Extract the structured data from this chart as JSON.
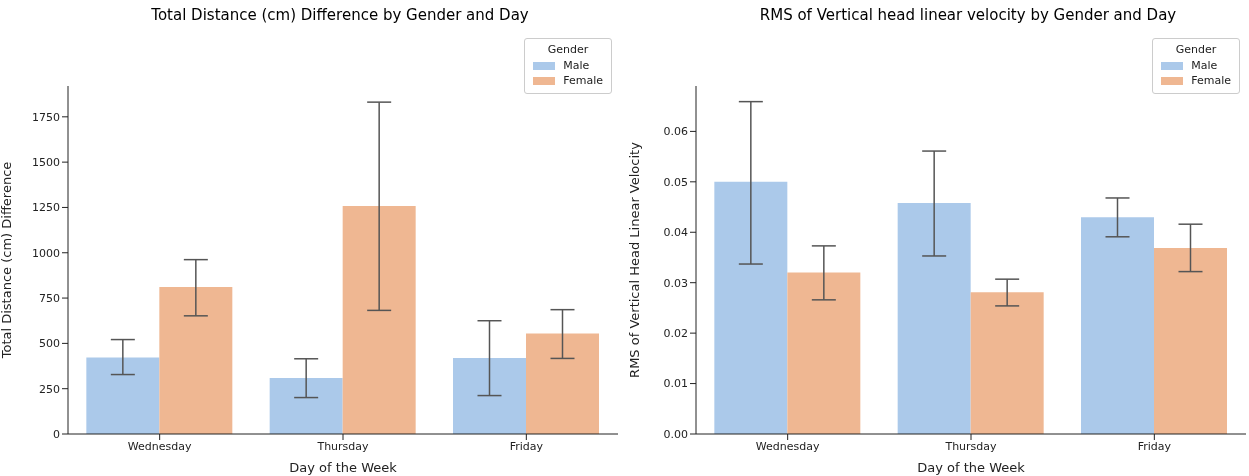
{
  "chart_data": [
    {
      "type": "bar",
      "title": "Total Distance (cm) Difference by Gender and Day",
      "xlabel": "Day of the Week",
      "ylabel": "Total Distance (cm) Difference",
      "legend_title": "Gender",
      "legend": "top right",
      "categories": [
        "Wednesday",
        "Thursday",
        "Friday"
      ],
      "series": [
        {
          "name": "Male",
          "color": "#abc9ea",
          "values": [
            422,
            309,
            419
          ],
          "errors": [
            [
              328,
              521
            ],
            [
              201,
              415
            ],
            [
              212,
              625
            ]
          ]
        },
        {
          "name": "Female",
          "color": "#efb792",
          "values": [
            811,
            1258,
            555
          ],
          "errors": [
            [
              652,
              962
            ],
            [
              682,
              1831
            ],
            [
              417,
              686
            ]
          ]
        }
      ],
      "ylim": [
        0,
        1920
      ],
      "yticks": [
        0,
        250,
        500,
        750,
        1000,
        1250,
        1500,
        1750
      ]
    },
    {
      "type": "bar",
      "title": "RMS of Vertical head linear velocity by Gender and Day",
      "xlabel": "Day of the Week",
      "ylabel": "RMS of Vertical Head Linear Velocity",
      "legend_title": "Gender",
      "legend": "top right",
      "categories": [
        "Wednesday",
        "Thursday",
        "Friday"
      ],
      "series": [
        {
          "name": "Male",
          "color": "#abc9ea",
          "values": [
            0.05,
            0.0458,
            0.043
          ],
          "errors": [
            [
              0.0337,
              0.0659
            ],
            [
              0.0353,
              0.0561
            ],
            [
              0.0391,
              0.0468
            ]
          ]
        },
        {
          "name": "Female",
          "color": "#efb792",
          "values": [
            0.032,
            0.0281,
            0.0369
          ],
          "errors": [
            [
              0.0266,
              0.0373
            ],
            [
              0.0254,
              0.0307
            ],
            [
              0.0322,
              0.0416
            ]
          ]
        }
      ],
      "ylim": [
        0,
        0.069
      ],
      "yticks": [
        {
          "value": 0,
          "label": "0.00"
        },
        {
          "value": 0.01,
          "label": "0.01"
        },
        {
          "value": 0.02,
          "label": "0.02"
        },
        {
          "value": 0.03,
          "label": "0.03"
        },
        {
          "value": 0.04,
          "label": "0.04"
        },
        {
          "value": 0.05,
          "label": "0.05"
        },
        {
          "value": 0.06,
          "label": "0.06"
        }
      ]
    }
  ]
}
